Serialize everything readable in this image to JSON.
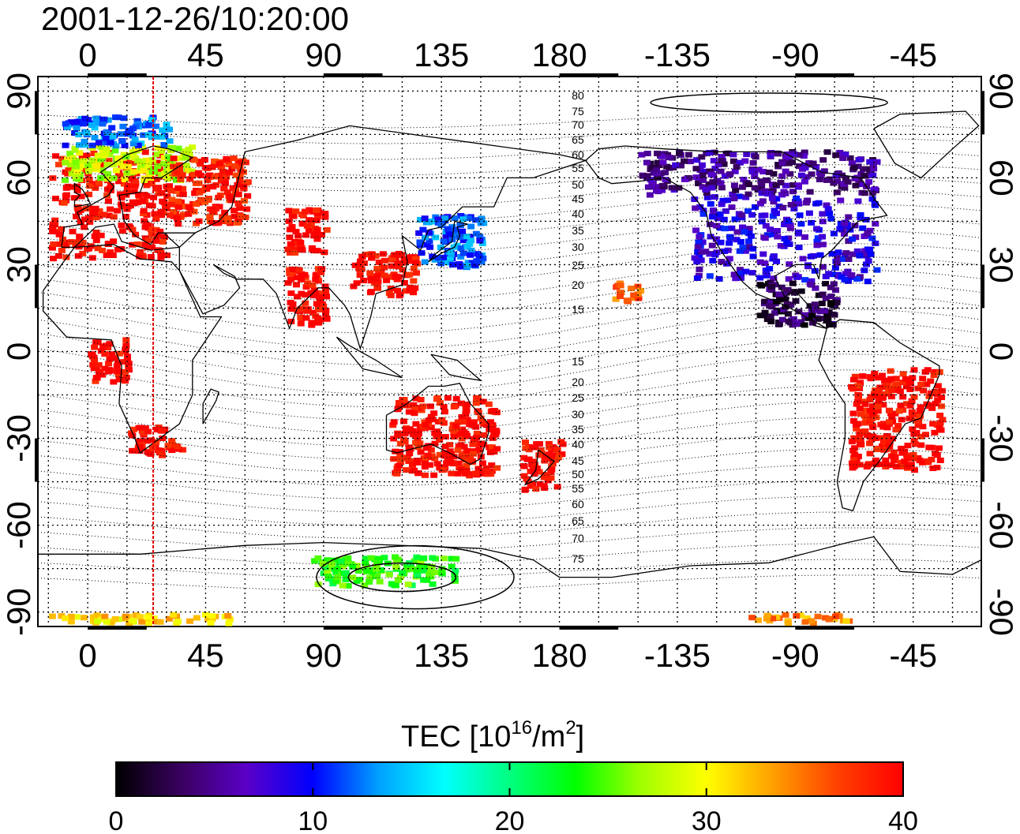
{
  "title": "2001-12-26/10:20:00",
  "map": {
    "projection": "equirectangular",
    "lon_range": [
      -19,
      341
    ],
    "lat_range": [
      -95,
      95
    ],
    "lon_ticks": [
      {
        "value": 0,
        "label": "0"
      },
      {
        "value": 45,
        "label": "45"
      },
      {
        "value": 90,
        "label": "90"
      },
      {
        "value": 135,
        "label": "135"
      },
      {
        "value": 180,
        "label": "180"
      },
      {
        "value": 225,
        "label": "-135"
      },
      {
        "value": 270,
        "label": "-90"
      },
      {
        "value": 315,
        "label": "-45"
      }
    ],
    "lat_ticks": [
      {
        "value": 90,
        "label": "90"
      },
      {
        "value": 60,
        "label": "60"
      },
      {
        "value": 30,
        "label": "30"
      },
      {
        "value": 0,
        "label": "0"
      },
      {
        "value": -30,
        "label": "-30"
      },
      {
        "value": -60,
        "label": "-60"
      },
      {
        "value": -90,
        "label": "-90"
      }
    ],
    "grid": "dotted",
    "meridian_marker_lon": 25,
    "meridian_marker_color": "#e00000",
    "magnetic_lat_labels_north": [
      "80",
      "75",
      "70",
      "65",
      "60",
      "55",
      "50",
      "45",
      "40",
      "35",
      "30",
      "25",
      "20",
      "15"
    ],
    "magnetic_lat_labels_south": [
      "15",
      "20",
      "25",
      "30",
      "35",
      "40",
      "45",
      "50",
      "55",
      "60",
      "65",
      "70",
      "75"
    ]
  },
  "tec_regions": [
    {
      "name": "europe",
      "lon": [
        -15,
        30
      ],
      "lat": [
        33,
        70
      ],
      "value": 40
    },
    {
      "name": "scandinavia",
      "lon": [
        -10,
        40
      ],
      "lat": [
        60,
        72
      ],
      "value": 28
    },
    {
      "name": "north-atlantic",
      "lon": [
        -10,
        30
      ],
      "lat": [
        72,
        82
      ],
      "value": 12
    },
    {
      "name": "russia",
      "lon": [
        30,
        60
      ],
      "lat": [
        45,
        68
      ],
      "value": 39
    },
    {
      "name": "central-asia",
      "lon": [
        75,
        90
      ],
      "lat": [
        35,
        50
      ],
      "value": 40
    },
    {
      "name": "india",
      "lon": [
        75,
        90
      ],
      "lat": [
        10,
        30
      ],
      "value": 40
    },
    {
      "name": "china",
      "lon": [
        100,
        125
      ],
      "lat": [
        20,
        35
      ],
      "value": 40
    },
    {
      "name": "japan",
      "lon": [
        125,
        150
      ],
      "lat": [
        30,
        48
      ],
      "value": 12
    },
    {
      "name": "south-africa",
      "lon": [
        15,
        35
      ],
      "lat": [
        -35,
        -25
      ],
      "value": 40
    },
    {
      "name": "west-africa",
      "lon": [
        0,
        15
      ],
      "lat": [
        -10,
        5
      ],
      "value": 40
    },
    {
      "name": "australia",
      "lon": [
        115,
        155
      ],
      "lat": [
        -42,
        -15
      ],
      "value": 40
    },
    {
      "name": "new-zealand",
      "lon": [
        165,
        180
      ],
      "lat": [
        -47,
        -30
      ],
      "value": 40
    },
    {
      "name": "hawaii",
      "lon": [
        200,
        210
      ],
      "lat": [
        18,
        25
      ],
      "value": 36
    },
    {
      "name": "north-america",
      "lon": [
        230,
        300
      ],
      "lat": [
        25,
        55
      ],
      "value": 8
    },
    {
      "name": "canada",
      "lon": [
        210,
        300
      ],
      "lat": [
        55,
        70
      ],
      "value": 5
    },
    {
      "name": "mexico",
      "lon": [
        255,
        285
      ],
      "lat": [
        10,
        25
      ],
      "value": 3
    },
    {
      "name": "south-america",
      "lon": [
        290,
        325
      ],
      "lat": [
        -40,
        -5
      ],
      "value": 40
    },
    {
      "name": "antarctica-coast",
      "lon": [
        85,
        140
      ],
      "lat": [
        -80,
        -70
      ],
      "value": 24
    },
    {
      "name": "south-pole-band",
      "lon": [
        -15,
        55
      ],
      "lat": [
        -93,
        -90
      ],
      "value": 31
    },
    {
      "name": "south-pole-band-east",
      "lon": [
        250,
        290
      ],
      "lat": [
        -93,
        -90
      ],
      "value": 34
    }
  ],
  "colorbar": {
    "label_main": "TEC  [10",
    "label_exp1": "16",
    "label_mid": "/m",
    "label_exp2": "2",
    "label_end": "]",
    "range": [
      0,
      40
    ],
    "ticks": [
      {
        "value": 0,
        "label": "0"
      },
      {
        "value": 10,
        "label": "10"
      },
      {
        "value": 20,
        "label": "20"
      },
      {
        "value": 30,
        "label": "30"
      },
      {
        "value": 40,
        "label": "40"
      }
    ],
    "colormap": [
      "#000000",
      "#3a0060",
      "#5a00c8",
      "#0000ff",
      "#00a0ff",
      "#00ffff",
      "#00ff80",
      "#00ff00",
      "#a0ff00",
      "#ffff00",
      "#ffa000",
      "#ff4000",
      "#ff0000"
    ]
  }
}
